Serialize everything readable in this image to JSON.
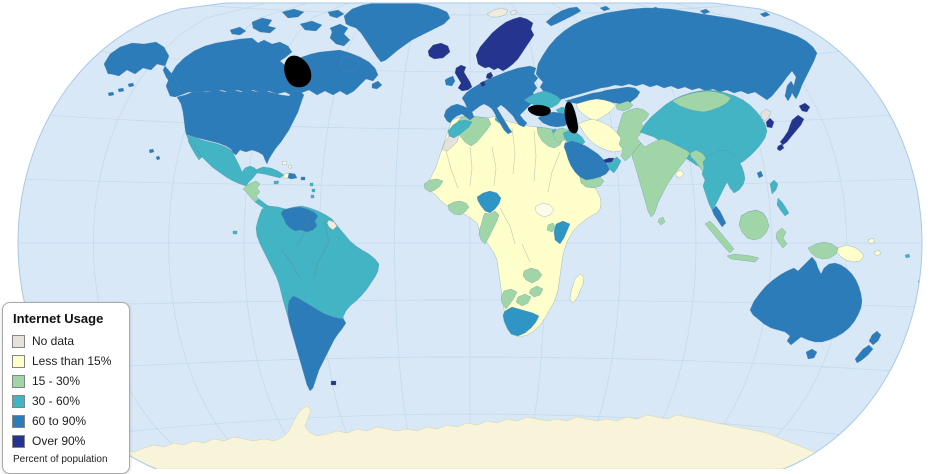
{
  "legend": {
    "title": "Internet Usage",
    "items": [
      {
        "label": "No data",
        "color": "#e4e2da"
      },
      {
        "label": "Less than 15%",
        "color": "#ffffcc"
      },
      {
        "label": "15 - 30%",
        "color": "#a0d5a8"
      },
      {
        "label": "30 - 60%",
        "color": "#43b4c4"
      },
      {
        "label": "60 to 90%",
        "color": "#2d7cba"
      },
      {
        "label": "Over 90%",
        "color": "#24348f"
      }
    ],
    "footnote": "Percent of population"
  },
  "map": {
    "colors": {
      "background": "#ffffff",
      "ocean": "#d9e8f6",
      "graticule": "#c0d9ee",
      "outline": "#a9c9e5",
      "land_border": "#5f87a3"
    },
    "regions": {
      "canada": {
        "category": "60 to 90%"
      },
      "usa": {
        "category": "60 to 90%"
      },
      "greenland": {
        "category": "60 to 90%"
      },
      "mexico": {
        "category": "30 - 60%"
      },
      "central-america": {
        "category": "15 - 30%"
      },
      "costa-rica-panama": {
        "category": "30 - 60%"
      },
      "cuba": {
        "category": "30 - 60%"
      },
      "jamaica": {
        "category": "30 - 60%"
      },
      "haiti": {
        "category": "Less than 15%"
      },
      "dominican-republic": {
        "category": "60 to 90%"
      },
      "puerto-rico": {
        "category": "60 to 90%"
      },
      "bahamas": {
        "category": "Less than 15%"
      },
      "lesser-antilles": {
        "category": "30 - 60%"
      },
      "galapagos": {
        "category": "30 - 60%"
      },
      "south-america": {
        "category": "30 - 60%"
      },
      "venezuela": {
        "category": "60 to 90%"
      },
      "french-guiana": {
        "category": "No data",
        "color": "#efecdc"
      },
      "chile-argentina-uruguay": {
        "category": "60 to 90%"
      },
      "falkland-islands": {
        "category": "Over 90%"
      },
      "europe": {
        "category": "60 to 90%"
      },
      "united-kingdom": {
        "category": "Over 90%"
      },
      "ireland": {
        "category": "60 to 90%"
      },
      "iceland": {
        "category": "Over 90%"
      },
      "scandinavia": {
        "category": "Over 90%"
      },
      "denmark": {
        "category": "Over 90%"
      },
      "netherlands": {
        "category": "Over 90%"
      },
      "svalbard": {
        "category": "No data",
        "color": "#efecdc"
      },
      "ukraine-romania": {
        "category": "30 - 60%"
      },
      "caucasus": {
        "category": "30 - 60%"
      },
      "russia": {
        "category": "60 to 90%"
      },
      "kazakhstan": {
        "category": "60 to 90%"
      },
      "uzbekistan-turkmenistan": {
        "category": "Less than 15%"
      },
      "kyrgyzstan-tajikistan": {
        "category": "15 - 30%"
      },
      "turkey": {
        "category": "60 to 90%"
      },
      "cyprus": {
        "category": "30 - 60%"
      },
      "syria-levant": {
        "category": "15 - 30%"
      },
      "iraq": {
        "category": "30 - 60%"
      },
      "iran": {
        "category": "Less than 15%"
      },
      "saudi-arabia": {
        "category": "60 to 90%"
      },
      "yemen": {
        "category": "15 - 30%"
      },
      "oman": {
        "category": "30 - 60%"
      },
      "uae-qatar": {
        "category": "Over 90%"
      },
      "afghanistan-pakistan": {
        "category": "15 - 30%"
      },
      "india": {
        "category": "15 - 30%"
      },
      "bangladesh": {
        "category": "Less than 15%"
      },
      "sri-lanka": {
        "category": "15 - 30%"
      },
      "china": {
        "category": "30 - 60%"
      },
      "mongolia": {
        "category": "15 - 30%"
      },
      "north-korea": {
        "category": "No data"
      },
      "south-korea": {
        "category": "Over 90%"
      },
      "japan": {
        "category": "Over 90%"
      },
      "taiwan": {
        "category": "60 to 90%"
      },
      "myanmar": {
        "category": "15 - 30%"
      },
      "indochina": {
        "category": "30 - 60%"
      },
      "malaysia": {
        "category": "60 to 90%"
      },
      "indonesia": {
        "category": "15 - 30%"
      },
      "philippines": {
        "category": "30 - 60%"
      },
      "papua-new-guinea": {
        "category": "Less than 15%"
      },
      "pacific-islands": {
        "category": "30 - 60%"
      },
      "australia": {
        "category": "60 to 90%"
      },
      "new-zealand": {
        "category": "60 to 90%"
      },
      "africa": {
        "category": "Less than 15%"
      },
      "morocco": {
        "category": "30 - 60%"
      },
      "western-sahara": {
        "category": "No data"
      },
      "algeria": {
        "category": "15 - 30%"
      },
      "tunisia": {
        "category": "30 - 60%"
      },
      "egypt": {
        "category": "15 - 30%"
      },
      "senegal-mauritania": {
        "category": "15 - 30%"
      },
      "ghana-cote-divoire": {
        "category": "15 - 30%"
      },
      "nigeria": {
        "category": "30 - 60%",
        "color": "#2e95c5"
      },
      "cameroon-gabon": {
        "category": "15 - 30%"
      },
      "south-sudan": {
        "category": "No data",
        "color": "#fcfce9"
      },
      "uganda": {
        "category": "15 - 30%"
      },
      "kenya": {
        "category": "30 - 60%",
        "color": "#2e95c5"
      },
      "zambia": {
        "category": "15 - 30%"
      },
      "zimbabwe": {
        "category": "15 - 30%"
      },
      "botswana": {
        "category": "15 - 30%"
      },
      "namibia": {
        "category": "15 - 30%"
      },
      "south-africa": {
        "category": "30 - 60%",
        "color": "#2e95c5"
      },
      "madagascar": {
        "category": "Less than 15%"
      },
      "antarctica": {
        "category": "No data",
        "color": "#f8f4d9"
      }
    }
  }
}
